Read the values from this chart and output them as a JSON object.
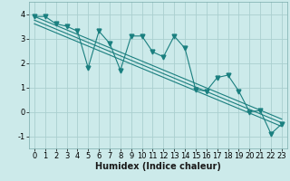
{
  "xlabel": "Humidex (Indice chaleur)",
  "bg_color": "#cceaea",
  "line_color": "#1a7f7f",
  "grid_color": "#aacfcf",
  "x_data": [
    0,
    1,
    2,
    3,
    4,
    5,
    6,
    7,
    8,
    9,
    10,
    11,
    12,
    13,
    14,
    15,
    16,
    17,
    18,
    19,
    20,
    21,
    22,
    23
  ],
  "y_scatter": [
    3.9,
    3.9,
    3.6,
    3.5,
    3.3,
    1.8,
    3.3,
    2.8,
    1.7,
    3.1,
    3.1,
    2.45,
    2.25,
    3.1,
    2.6,
    0.9,
    0.85,
    1.4,
    1.5,
    0.85,
    0.0,
    0.05,
    -0.9,
    -0.5
  ],
  "trend_lines": [
    [
      0,
      3.9,
      23,
      -0.3
    ],
    [
      0,
      3.75,
      23,
      -0.45
    ],
    [
      0,
      3.6,
      23,
      -0.6
    ]
  ],
  "xlim": [
    -0.5,
    23.5
  ],
  "ylim": [
    -1.5,
    4.5
  ],
  "yticks": [
    -1,
    0,
    1,
    2,
    3,
    4
  ],
  "xticks": [
    0,
    1,
    2,
    3,
    4,
    5,
    6,
    7,
    8,
    9,
    10,
    11,
    12,
    13,
    14,
    15,
    16,
    17,
    18,
    19,
    20,
    21,
    22,
    23
  ],
  "tick_fontsize": 6,
  "xlabel_fontsize": 7
}
